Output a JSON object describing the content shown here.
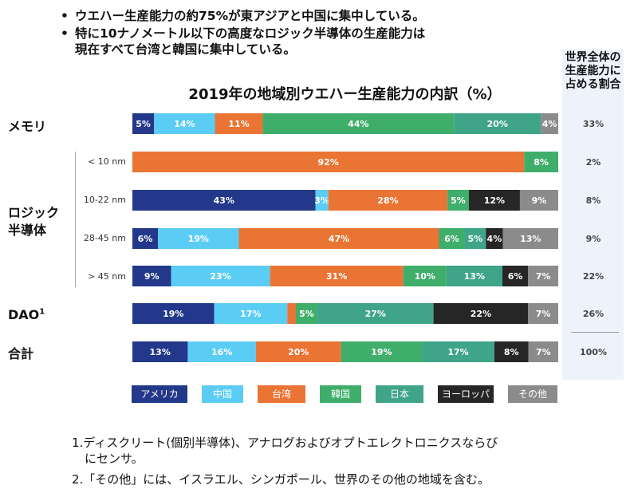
{
  "bullets": [
    "ウエハー生産能力の約75%が東アジアと中国に集中している。",
    "特に10ナノメートル以下の高度なロジック半導体の生産能力は",
    "現在すべて台湾と韓国に集中している。"
  ],
  "share_header": "世界全体の生産能力に占める割合",
  "footnotes": {
    "n1_line1": "1.ディスクリート(個別半導体)、アナログおよびオプトエレクトロニクスならび",
    "n1_line2": "にセンサ。",
    "n2": "2.「その他」には、イスラエル、シンガポール、世界のその他の地域を含む。"
  },
  "categories": {
    "memory": "メモリ",
    "logic": "ロジック半導体",
    "logic_line1": "ロジック",
    "logic_line2": "半導体",
    "dao": "DAO",
    "dao_sup": "1",
    "total": "合計"
  },
  "colors": {
    "america": "#23388a",
    "china": "#5bcdf4",
    "taiwan": "#ea7434",
    "korea": "#3fae6b",
    "japan": "#3fa488",
    "europe": "#262626",
    "other": "#8b8b8b",
    "share_bg": "#eef3fb"
  },
  "chart_data": {
    "type": "bar",
    "orientation": "horizontal-stacked-100",
    "title": "2019年の地域別ウエハー生産能力の内訳（%）",
    "series_names": [
      "アメリカ",
      "中国",
      "台湾",
      "韓国",
      "日本",
      "ヨーロッパ",
      "その他"
    ],
    "rows": [
      {
        "label": "メモリ",
        "sublabel": "",
        "values": [
          5,
          14,
          11,
          44,
          20,
          0,
          4
        ],
        "share": "33%"
      },
      {
        "label": "ロジック半導体",
        "sublabel": "< 10 nm",
        "values": [
          0,
          0,
          92,
          8,
          0,
          0,
          0
        ],
        "share": "2%"
      },
      {
        "label": "ロジック半導体",
        "sublabel": "10-22 nm",
        "values": [
          43,
          3,
          28,
          5,
          0,
          12,
          9
        ],
        "share": "8%"
      },
      {
        "label": "ロジック半導体",
        "sublabel": "28-45 nm",
        "values": [
          6,
          19,
          47,
          6,
          5,
          4,
          13
        ],
        "share": "9%"
      },
      {
        "label": "ロジック半導体",
        "sublabel": "> 45 nm",
        "values": [
          9,
          23,
          31,
          10,
          13,
          6,
          7
        ],
        "share": "22%"
      },
      {
        "label": "DAO1",
        "sublabel": "",
        "values": [
          19,
          17,
          2,
          5,
          27,
          22,
          7
        ],
        "share": "26%"
      },
      {
        "label": "合計",
        "sublabel": "",
        "values": [
          13,
          16,
          20,
          19,
          17,
          8,
          7
        ],
        "share": "100%"
      }
    ],
    "hidden_labels": [
      {
        "row": 5,
        "series": 2
      }
    ],
    "xlim": [
      0,
      100
    ]
  }
}
